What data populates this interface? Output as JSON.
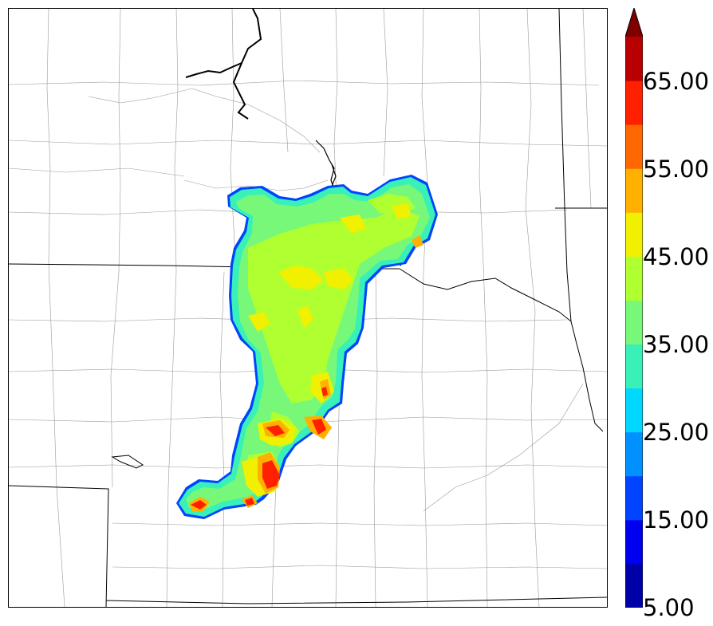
{
  "colorbar": {
    "labels": [
      "5.00",
      "15.00",
      "25.00",
      "35.00",
      "45.00",
      "55.00",
      "65.00"
    ],
    "levels": [
      5,
      10,
      15,
      20,
      25,
      30,
      35,
      40,
      45,
      50,
      55,
      60,
      65,
      70
    ],
    "colors": [
      "#0000a8",
      "#0000f0",
      "#0044ff",
      "#0090ff",
      "#00d8ff",
      "#38f0b8",
      "#78f878",
      "#b0ff30",
      "#f0f000",
      "#ffb000",
      "#ff6800",
      "#ff2000",
      "#b80000",
      "#800000"
    ],
    "extend": "max"
  },
  "map": {
    "basemap": "county and state boundaries",
    "boundary_color": "#000000",
    "county_color": "#888888"
  }
}
